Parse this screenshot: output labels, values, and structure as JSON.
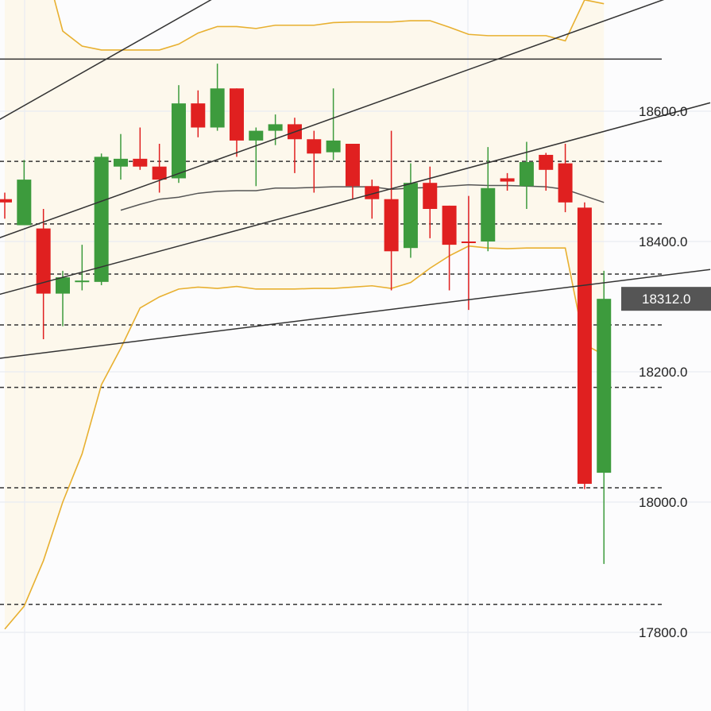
{
  "chart_data": {
    "type": "candlestick",
    "title": "",
    "xlabel": "",
    "ylabel": "",
    "ylim": [
      17715,
      18805
    ],
    "y_ticks": [
      "18600.0",
      "18400.0",
      "18200.0",
      "18000.0",
      "17800.0"
    ],
    "y_tick_values": [
      18600,
      18400,
      18200,
      18000,
      17800
    ],
    "grid": true,
    "last_price": {
      "value": 18312,
      "label": "18312.0"
    },
    "candles": [
      {
        "open": 18465,
        "close": 18460,
        "high": 18475,
        "low": 18435
      },
      {
        "open": 18425,
        "close": 18495,
        "high": 18525,
        "low": 18430
      },
      {
        "open": 18420,
        "close": 18320,
        "high": 18450,
        "low": 18250
      },
      {
        "open": 18320,
        "close": 18345,
        "high": 18355,
        "low": 18270
      },
      {
        "open": 18338,
        "close": 18340,
        "high": 18395,
        "low": 18325
      },
      {
        "open": 18338,
        "close": 18530,
        "high": 18535,
        "low": 18333
      },
      {
        "open": 18515,
        "close": 18527,
        "high": 18565,
        "low": 18495
      },
      {
        "open": 18527,
        "close": 18515,
        "high": 18575,
        "low": 18510
      },
      {
        "open": 18515,
        "close": 18495,
        "high": 18550,
        "low": 18475
      },
      {
        "open": 18497,
        "close": 18612,
        "high": 18640,
        "low": 18490
      },
      {
        "open": 18612,
        "close": 18575,
        "high": 18632,
        "low": 18560
      },
      {
        "open": 18575,
        "close": 18635,
        "high": 18673,
        "low": 18570
      },
      {
        "open": 18635,
        "close": 18555,
        "high": 18635,
        "low": 18530
      },
      {
        "open": 18555,
        "close": 18570,
        "high": 18575,
        "low": 18485
      },
      {
        "open": 18570,
        "close": 18580,
        "high": 18595,
        "low": 18548
      },
      {
        "open": 18580,
        "close": 18557,
        "high": 18590,
        "low": 18505
      },
      {
        "open": 18557,
        "close": 18535,
        "high": 18570,
        "low": 18475
      },
      {
        "open": 18537,
        "close": 18555,
        "high": 18635,
        "low": 18525
      },
      {
        "open": 18550,
        "close": 18485,
        "high": 18550,
        "low": 18465
      },
      {
        "open": 18485,
        "close": 18465,
        "high": 18495,
        "low": 18435
      },
      {
        "open": 18465,
        "close": 18385,
        "high": 18570,
        "low": 18325
      },
      {
        "open": 18390,
        "close": 18490,
        "high": 18520,
        "low": 18375
      },
      {
        "open": 18490,
        "close": 18450,
        "high": 18515,
        "low": 18405
      },
      {
        "open": 18455,
        "close": 18395,
        "high": 18455,
        "low": 18325
      },
      {
        "open": 18400,
        "close": 18398,
        "high": 18470,
        "low": 18295
      },
      {
        "open": 18400,
        "close": 18482,
        "high": 18545,
        "low": 18385
      },
      {
        "open": 18497,
        "close": 18492,
        "high": 18505,
        "low": 18478
      },
      {
        "open": 18485,
        "close": 18522,
        "high": 18553,
        "low": 18450
      },
      {
        "open": 18533,
        "close": 18510,
        "high": 18536,
        "low": 18478
      },
      {
        "open": 18520,
        "close": 18460,
        "high": 18550,
        "low": 18445
      },
      {
        "open": 18452,
        "close": 18028,
        "high": 18460,
        "low": 18020
      },
      {
        "open": 18045,
        "close": 18312,
        "high": 18355,
        "low": 17905
      }
    ],
    "moving_average": [
      null,
      null,
      null,
      null,
      null,
      null,
      18448,
      18457,
      18465,
      18468,
      18474,
      18477,
      18478,
      18478,
      18482,
      18482,
      18483,
      18484,
      18484,
      18484,
      18480,
      18482,
      18483,
      18485,
      18487,
      18486,
      18486,
      18485,
      18484,
      18480,
      18470,
      18460
    ],
    "bollinger_upper": [
      18866,
      18840,
      18835,
      18723,
      18700,
      18694,
      18694,
      18694,
      18694,
      18703,
      18720,
      18730,
      18730,
      18727,
      18732,
      18732,
      18732,
      18736,
      18737,
      18737,
      18737,
      18739,
      18739,
      18729,
      18718,
      18716,
      18716,
      18716,
      18716,
      18708,
      18771,
      18765
    ],
    "bollinger_lower": [
      17805,
      17840,
      17910,
      18000,
      18074,
      18180,
      18236,
      18298,
      18315,
      18327,
      18330,
      18328,
      18331,
      18327,
      18327,
      18327,
      18328,
      18328,
      18330,
      18332,
      18328,
      18337,
      18359,
      18378,
      18393,
      18390,
      18389,
      18390,
      18390,
      18390,
      18242,
      18226
    ],
    "horizontal_levels": [
      {
        "value": 18680,
        "style": "solid"
      },
      {
        "value": 18523,
        "style": "dashed"
      },
      {
        "value": 18427,
        "style": "dashed"
      },
      {
        "value": 18350,
        "style": "dashed"
      },
      {
        "value": 18272,
        "style": "dashed"
      },
      {
        "value": 18176,
        "style": "dashed"
      },
      {
        "value": 18022,
        "style": "dashed"
      },
      {
        "value": 17843,
        "style": "dashed"
      }
    ],
    "trend_lines": [
      {
        "from": [
          -1,
          18575
        ],
        "to": [
          17.75,
          18890
        ]
      },
      {
        "from": [
          -1,
          18398
        ],
        "to": [
          36.5,
          18797
        ]
      },
      {
        "from": [
          -1,
          18313
        ],
        "to": [
          36.5,
          18613
        ]
      },
      {
        "from": [
          -1,
          18218
        ],
        "to": [
          36.5,
          18357
        ]
      }
    ],
    "colors": {
      "up": "#3d9b3d",
      "down": "#e02020",
      "bollinger": "#e8b030",
      "ma": "#555555",
      "trend": "#333333",
      "level": "#333333",
      "grid": "#e9ecf3",
      "band_fill": "#fdf8ec",
      "price_tag": "#555555"
    }
  }
}
